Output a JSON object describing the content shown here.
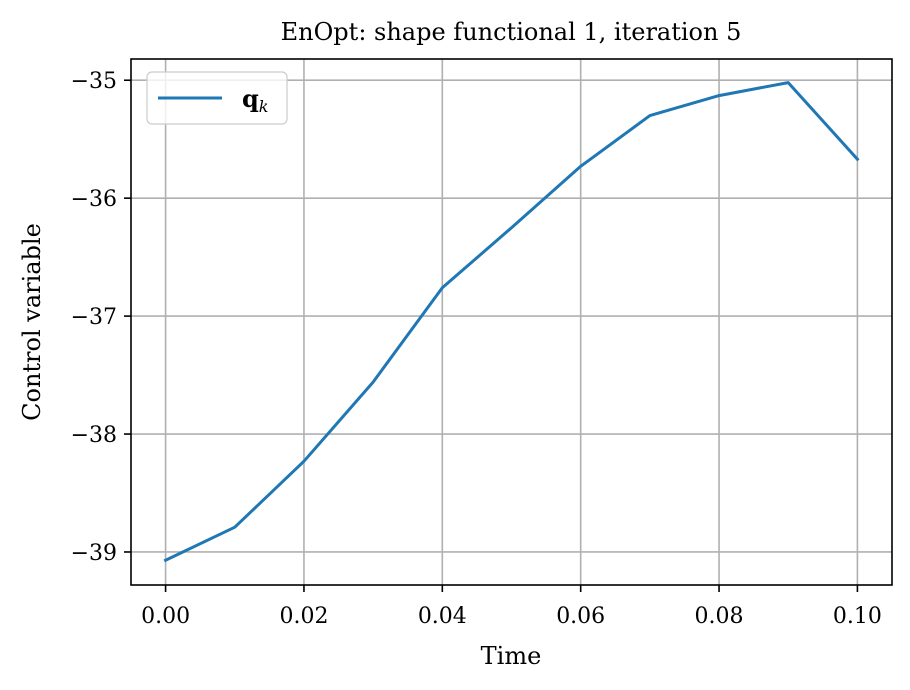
{
  "chart_data": {
    "type": "line",
    "title": "EnOpt: shape functional 1, iteration 5",
    "xlabel": "Time",
    "ylabel": "Control variable",
    "xlim": [
      -0.005,
      0.105
    ],
    "ylim": [
      -39.28,
      -34.82
    ],
    "x_ticks": [
      0.0,
      0.02,
      0.04,
      0.06,
      0.08,
      0.1
    ],
    "x_tick_labels": [
      "0.00",
      "0.02",
      "0.04",
      "0.06",
      "0.08",
      "0.10"
    ],
    "y_ticks": [
      -39,
      -38,
      -37,
      -36,
      -35
    ],
    "y_tick_labels": [
      "−39",
      "−38",
      "−37",
      "−36",
      "−35"
    ],
    "grid": true,
    "legend_position": "top-left",
    "series": [
      {
        "name": "q",
        "name_subscript": "k",
        "color": "#1f77b4",
        "x": [
          0.0,
          0.01,
          0.02,
          0.03,
          0.04,
          0.05,
          0.06,
          0.07,
          0.08,
          0.09,
          0.1
        ],
        "values": [
          -39.07,
          -38.79,
          -38.23,
          -37.56,
          -36.76,
          -36.25,
          -35.73,
          -35.3,
          -35.13,
          -35.02,
          -35.67
        ]
      }
    ]
  }
}
